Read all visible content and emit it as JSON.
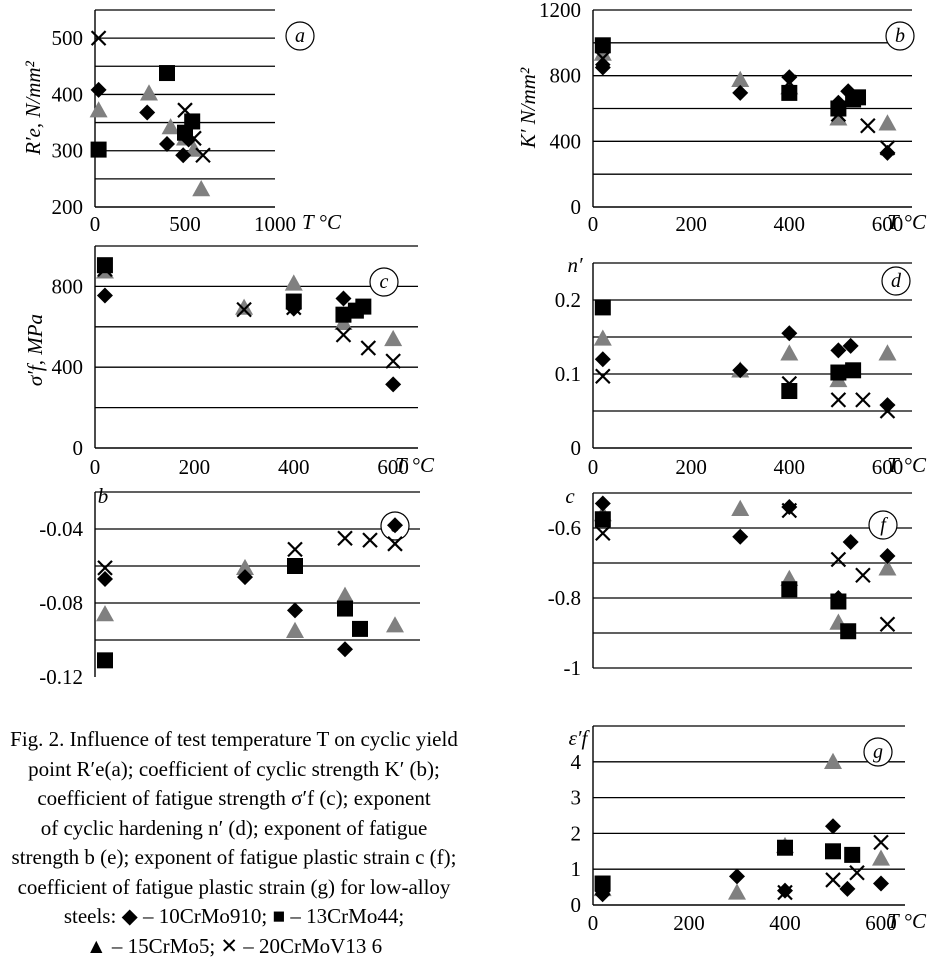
{
  "figure": {
    "caption_lines": [
      "Fig. 2. Influence of test temperature T on cyclic yield",
      "point R′e(a); coefficient of cyclic strength K′ (b);",
      "coefficient of fatigue strength σ′f (c); exponent",
      "of cyclic hardening n′ (d); exponent of fatigue",
      "strength b (e); exponent of fatigue plastic strain c (f);",
      "coefficient of fatigue plastic strain (g) for low-alloy",
      "steels: ◆ – 10CrMo910; ■ – 13CrMo44;",
      "▲ – 15CrMo5; ✕ – 20CrMoV13 6"
    ],
    "series_names": [
      "10CrMo910",
      "13CrMo44",
      "15CrMo5",
      "20CrMoV13 6"
    ],
    "colors": {
      "diamond": "#000000",
      "square": "#000000",
      "triangle": "#808080",
      "cross": "#000000",
      "grid": "#000000"
    }
  },
  "chart_data": [
    {
      "id": "a",
      "panel_label": "a",
      "type": "scatter",
      "ylabel": "R′e, N/mm²",
      "xlabel": "T °C",
      "xlim": [
        0,
        1000
      ],
      "ylim": [
        200,
        550
      ],
      "xticks": [
        0,
        500,
        1000
      ],
      "yticks": [
        200,
        300,
        400,
        500
      ],
      "gridlines": [
        250,
        300,
        350,
        400,
        450,
        500,
        550
      ],
      "series": [
        {
          "marker": "diamond",
          "points": [
            [
              20,
              408
            ],
            [
              290,
              368
            ],
            [
              400,
              312
            ],
            [
              490,
              292
            ],
            [
              520,
              320
            ]
          ]
        },
        {
          "marker": "square",
          "points": [
            [
              20,
              302
            ],
            [
              400,
              438
            ],
            [
              500,
              332
            ],
            [
              540,
              352
            ]
          ]
        },
        {
          "marker": "triangle",
          "points": [
            [
              20,
              372
            ],
            [
              300,
              402
            ],
            [
              420,
              342
            ],
            [
              500,
              322
            ],
            [
              550,
              302
            ],
            [
              590,
              232
            ]
          ]
        },
        {
          "marker": "cross",
          "points": [
            [
              20,
              500
            ],
            [
              500,
              372
            ],
            [
              550,
              322
            ],
            [
              600,
              292
            ]
          ]
        }
      ]
    },
    {
      "id": "b",
      "panel_label": "b",
      "type": "scatter",
      "ylabel": "K′ N/mm²",
      "xlabel": "T °C",
      "xlim": [
        0,
        650
      ],
      "ylim": [
        0,
        1200
      ],
      "xticks": [
        0,
        200,
        400,
        600
      ],
      "yticks": [
        0,
        400,
        800,
        1200
      ],
      "gridlines": [
        200,
        400,
        600,
        800,
        1000,
        1200
      ],
      "series": [
        {
          "marker": "diamond",
          "points": [
            [
              20,
              850
            ],
            [
              300,
              695
            ],
            [
              400,
              790
            ],
            [
              500,
              635
            ],
            [
              520,
              705
            ],
            [
              600,
              330
            ]
          ]
        },
        {
          "marker": "square",
          "points": [
            [
              20,
              985
            ],
            [
              400,
              695
            ],
            [
              500,
              600
            ],
            [
              530,
              655
            ],
            [
              540,
              668
            ]
          ]
        },
        {
          "marker": "triangle",
          "points": [
            [
              20,
              935
            ],
            [
              300,
              775
            ],
            [
              400,
              730
            ],
            [
              500,
              540
            ],
            [
              600,
              510
            ]
          ]
        },
        {
          "marker": "cross",
          "points": [
            [
              20,
              905
            ],
            [
              400,
              760
            ],
            [
              500,
              565
            ],
            [
              560,
              495
            ],
            [
              600,
              360
            ]
          ]
        }
      ]
    },
    {
      "id": "c",
      "panel_label": "c",
      "type": "scatter",
      "ylabel": "σ′f, MPa",
      "xlabel": "T °C",
      "xlim": [
        0,
        650
      ],
      "ylim": [
        0,
        1000
      ],
      "xticks": [
        0,
        200,
        400,
        600
      ],
      "yticks": [
        0,
        400,
        800
      ],
      "gridlines": [
        200,
        400,
        600,
        800,
        1000
      ],
      "series": [
        {
          "marker": "diamond",
          "points": [
            [
              20,
              755
            ],
            [
              400,
              690
            ],
            [
              500,
              740
            ],
            [
              600,
              315
            ]
          ]
        },
        {
          "marker": "square",
          "points": [
            [
              20,
              905
            ],
            [
              400,
              725
            ],
            [
              500,
              660
            ],
            [
              525,
              680
            ],
            [
              540,
              700
            ]
          ]
        },
        {
          "marker": "triangle",
          "points": [
            [
              20,
              875
            ],
            [
              300,
              695
            ],
            [
              400,
              815
            ],
            [
              500,
              620
            ],
            [
              600,
              540
            ]
          ]
        },
        {
          "marker": "cross",
          "points": [
            [
              20,
              885
            ],
            [
              300,
              685
            ],
            [
              400,
              695
            ],
            [
              500,
              560
            ],
            [
              550,
              495
            ],
            [
              600,
              430
            ]
          ]
        }
      ]
    },
    {
      "id": "d",
      "panel_label": "d",
      "type": "scatter",
      "ylabel": "n′",
      "xlabel": "T °C",
      "xlim": [
        0,
        650
      ],
      "ylim": [
        0,
        0.25
      ],
      "xticks": [
        0,
        200,
        400,
        600
      ],
      "yticks": [
        0,
        0.1,
        0.2
      ],
      "ytick_labels": [
        "0",
        "0.1",
        "0.2"
      ],
      "gridlines": [
        0.05,
        0.1,
        0.15,
        0.2,
        0.25
      ],
      "series": [
        {
          "marker": "diamond",
          "points": [
            [
              20,
              0.12
            ],
            [
              300,
              0.105
            ],
            [
              400,
              0.155
            ],
            [
              500,
              0.132
            ],
            [
              525,
              0.138
            ],
            [
              600,
              0.058
            ]
          ]
        },
        {
          "marker": "square",
          "points": [
            [
              20,
              0.19
            ],
            [
              400,
              0.077
            ],
            [
              500,
              0.102
            ],
            [
              530,
              0.105
            ]
          ]
        },
        {
          "marker": "triangle",
          "points": [
            [
              20,
              0.148
            ],
            [
              300,
              0.105
            ],
            [
              400,
              0.128
            ],
            [
              500,
              0.092
            ],
            [
              600,
              0.128
            ]
          ]
        },
        {
          "marker": "cross",
          "points": [
            [
              20,
              0.097
            ],
            [
              400,
              0.087
            ],
            [
              500,
              0.065
            ],
            [
              550,
              0.065
            ],
            [
              600,
              0.05
            ]
          ]
        }
      ]
    },
    {
      "id": "e",
      "panel_label": "e",
      "type": "scatter",
      "ylabel": "b",
      "xlabel": "",
      "xlim": [
        0,
        650
      ],
      "ylim": [
        -0.12,
        -0.02
      ],
      "xticks": [],
      "yticks": [
        -0.04,
        -0.08,
        -0.12
      ],
      "ytick_labels": [
        "-0.04",
        "-0.08",
        "-0.12"
      ],
      "gridlines": [
        -0.02,
        -0.04,
        -0.06,
        -0.08,
        -0.1
      ],
      "series": [
        {
          "marker": "diamond",
          "points": [
            [
              20,
              -0.067
            ],
            [
              300,
              -0.066
            ],
            [
              400,
              -0.084
            ],
            [
              500,
              -0.105
            ],
            [
              600,
              -0.038
            ]
          ]
        },
        {
          "marker": "square",
          "points": [
            [
              20,
              -0.111
            ],
            [
              400,
              -0.06
            ],
            [
              500,
              -0.083
            ],
            [
              530,
              -0.094
            ]
          ]
        },
        {
          "marker": "triangle",
          "points": [
            [
              20,
              -0.086
            ],
            [
              300,
              -0.061
            ],
            [
              400,
              -0.095
            ],
            [
              500,
              -0.076
            ],
            [
              600,
              -0.092
            ]
          ]
        },
        {
          "marker": "cross",
          "points": [
            [
              20,
              -0.061
            ],
            [
              400,
              -0.051
            ],
            [
              500,
              -0.045
            ],
            [
              550,
              -0.046
            ],
            [
              600,
              -0.048
            ]
          ]
        }
      ]
    },
    {
      "id": "f",
      "panel_label": "f",
      "type": "scatter",
      "ylabel": "c",
      "xlabel": "",
      "xlim": [
        0,
        650
      ],
      "ylim": [
        -1.0,
        -0.5
      ],
      "xticks": [],
      "yticks": [
        -0.6,
        -0.8,
        -1.0
      ],
      "ytick_labels": [
        "-0.6",
        "-0.8",
        "-1"
      ],
      "gridlines": [
        -0.5,
        -0.6,
        -0.7,
        -0.8,
        -0.9,
        -1.0
      ],
      "series": [
        {
          "marker": "diamond",
          "points": [
            [
              20,
              -0.53
            ],
            [
              300,
              -0.625
            ],
            [
              400,
              -0.54
            ],
            [
              500,
              -0.8
            ],
            [
              525,
              -0.64
            ],
            [
              600,
              -0.68
            ]
          ]
        },
        {
          "marker": "square",
          "points": [
            [
              20,
              -0.575
            ],
            [
              400,
              -0.775
            ],
            [
              500,
              -0.81
            ],
            [
              520,
              -0.895
            ]
          ]
        },
        {
          "marker": "triangle",
          "points": [
            [
              20,
              -0.56
            ],
            [
              300,
              -0.545
            ],
            [
              400,
              -0.745
            ],
            [
              500,
              -0.87
            ],
            [
              600,
              -0.715
            ]
          ]
        },
        {
          "marker": "cross",
          "points": [
            [
              20,
              -0.615
            ],
            [
              400,
              -0.55
            ],
            [
              500,
              -0.69
            ],
            [
              550,
              -0.735
            ],
            [
              600,
              -0.875
            ]
          ]
        }
      ]
    },
    {
      "id": "g",
      "panel_label": "g",
      "type": "scatter",
      "ylabel": "ε′f",
      "xlabel": "T °C",
      "xlim": [
        0,
        650
      ],
      "ylim": [
        0,
        5
      ],
      "xticks": [
        0,
        200,
        400,
        600
      ],
      "yticks": [
        0,
        1,
        2,
        3,
        4
      ],
      "gridlines": [
        1,
        2,
        3,
        4,
        5
      ],
      "series": [
        {
          "marker": "diamond",
          "points": [
            [
              20,
              0.3
            ],
            [
              300,
              0.8
            ],
            [
              400,
              0.4
            ],
            [
              500,
              2.2
            ],
            [
              530,
              0.45
            ],
            [
              600,
              0.6
            ]
          ]
        },
        {
          "marker": "square",
          "points": [
            [
              20,
              0.6
            ],
            [
              400,
              1.6
            ],
            [
              500,
              1.5
            ],
            [
              540,
              1.4
            ]
          ]
        },
        {
          "marker": "triangle",
          "points": [
            [
              20,
              0.45
            ],
            [
              300,
              0.35
            ],
            [
              400,
              1.65
            ],
            [
              500,
              4.0
            ],
            [
              600,
              1.3
            ]
          ]
        },
        {
          "marker": "cross",
          "points": [
            [
              20,
              0.55
            ],
            [
              400,
              0.35
            ],
            [
              500,
              0.7
            ],
            [
              550,
              0.9
            ],
            [
              600,
              1.75
            ]
          ]
        }
      ]
    }
  ]
}
